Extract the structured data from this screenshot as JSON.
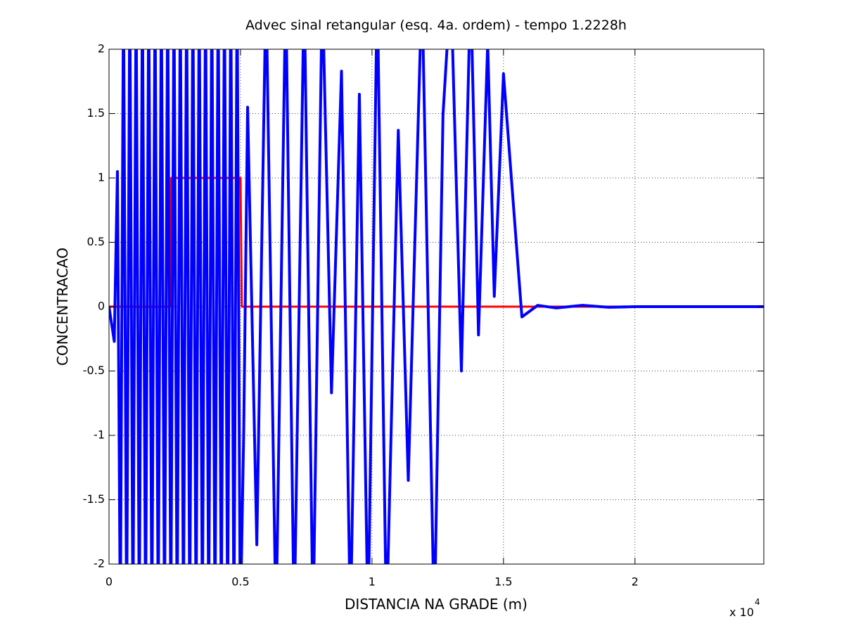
{
  "chart_data": {
    "type": "line",
    "title": "Advec sinal retangular (esq. 4a. ordem) - tempo 1.2228h",
    "xlabel": "DISTANCIA NA GRADE (m)",
    "ylabel": "CONCENTRACAO",
    "x_scale_label": {
      "base": "x 10",
      "exponent": "4"
    },
    "xlim": [
      0,
      2.49
    ],
    "ylim": [
      -2,
      2
    ],
    "xticks": [
      0,
      0.5,
      1,
      1.5,
      2
    ],
    "yticks": [
      -2,
      -1.5,
      -1,
      -0.5,
      0,
      0.5,
      1,
      1.5,
      2
    ],
    "grid": true,
    "series": [
      {
        "color": "#ff0000",
        "width": 3,
        "x": [
          0,
          0.236,
          0.236,
          0.5,
          0.505,
          2.49
        ],
        "values": [
          0,
          0,
          1,
          1,
          0,
          0
        ]
      },
      {
        "color": "#0000ff",
        "width": 4,
        "x": [
          0,
          0.02,
          0.032,
          0.043,
          0.055,
          0.067,
          0.079,
          0.091,
          0.103,
          0.115,
          0.127,
          0.139,
          0.151,
          0.163,
          0.175,
          0.187,
          0.199,
          0.211,
          0.223,
          0.235,
          0.247,
          0.259,
          0.271,
          0.283,
          0.295,
          0.307,
          0.319,
          0.331,
          0.343,
          0.355,
          0.367,
          0.379,
          0.391,
          0.403,
          0.415,
          0.427,
          0.439,
          0.451,
          0.463,
          0.475,
          0.487,
          0.499,
          0.512,
          0.527,
          0.562,
          0.597,
          0.635,
          0.672,
          0.704,
          0.742,
          0.776,
          0.811,
          0.846,
          0.884,
          0.918,
          0.952,
          0.985,
          1.02,
          1.055,
          1.1,
          1.138,
          1.19,
          1.237,
          1.27,
          1.3,
          1.34,
          1.375,
          1.405,
          1.44,
          1.465,
          1.5,
          1.57,
          1.63,
          1.7,
          1.8,
          1.9,
          2.0,
          2.49
        ],
        "values": [
          0,
          -0.27,
          1.05,
          -2.5,
          2.5,
          -2.5,
          2.5,
          -2.5,
          2.5,
          -2.5,
          2.5,
          -2.5,
          2.5,
          -2.5,
          2.5,
          -2.5,
          2.5,
          -2.5,
          2.5,
          -2.5,
          2.5,
          -2.5,
          2.5,
          -2.5,
          2.5,
          -2.5,
          2.5,
          -2.5,
          2.5,
          -2.5,
          2.5,
          -2.5,
          2.5,
          -2.5,
          2.5,
          -2.5,
          2.5,
          -2.5,
          2.5,
          -2.5,
          2.5,
          -2.5,
          -1.0,
          1.55,
          -1.85,
          2.5,
          -2.5,
          2.5,
          -2.5,
          2.5,
          -2.5,
          2.5,
          -0.67,
          1.83,
          -2.5,
          1.65,
          -2.5,
          2.5,
          -2.5,
          1.37,
          -1.35,
          2.5,
          -2.5,
          1.49,
          2.5,
          -0.5,
          2.5,
          -0.22,
          2.05,
          0.08,
          1.81,
          -0.08,
          0.01,
          -0.01,
          0.01,
          -0.005,
          0,
          0
        ]
      }
    ]
  }
}
